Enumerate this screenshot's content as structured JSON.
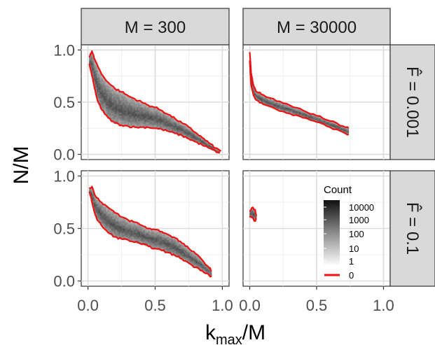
{
  "chart_data": {
    "type": "heatmap",
    "title": "",
    "xlabel": {
      "main": "k",
      "sub": "max",
      "tail": "/M"
    },
    "ylabel": "N/M",
    "col_strips": [
      "M = 300",
      "M = 30000"
    ],
    "row_strips": [
      "F̂ = 0.001",
      "F̂ = 0.1"
    ],
    "x_ticks": [
      0.0,
      0.5,
      1.0
    ],
    "x_tick_labels": [
      "0.0",
      "0.5",
      "1.0"
    ],
    "y_ticks": [
      0.0,
      0.5,
      1.0
    ],
    "y_tick_labels": [
      "0.0",
      "0.5",
      "1.0"
    ],
    "xlim": [
      -0.05,
      1.05
    ],
    "ylim": [
      -0.05,
      1.05
    ],
    "grid": true,
    "legend_position": "inside bottom-right panel",
    "legend": {
      "title": "Count",
      "colorbar_labels": [
        "10000",
        "1000",
        "100",
        "10",
        "1"
      ],
      "line_label": "0",
      "line_color": "#ee1111"
    },
    "series_color": "#ee1111",
    "panels": [
      {
        "col": 0,
        "row": 0,
        "upper": [
          [
            0.01,
            0.93
          ],
          [
            0.03,
            0.99
          ],
          [
            0.05,
            0.91
          ],
          [
            0.1,
            0.77
          ],
          [
            0.15,
            0.69
          ],
          [
            0.2,
            0.63
          ],
          [
            0.25,
            0.6
          ],
          [
            0.3,
            0.56
          ],
          [
            0.35,
            0.53
          ],
          [
            0.4,
            0.5
          ],
          [
            0.45,
            0.47
          ],
          [
            0.5,
            0.45
          ],
          [
            0.55,
            0.42
          ],
          [
            0.6,
            0.38
          ],
          [
            0.65,
            0.34
          ],
          [
            0.7,
            0.3
          ],
          [
            0.75,
            0.26
          ],
          [
            0.8,
            0.21
          ],
          [
            0.85,
            0.16
          ],
          [
            0.9,
            0.11
          ],
          [
            0.95,
            0.06
          ],
          [
            0.99,
            0.03
          ]
        ],
        "lower": [
          [
            0.01,
            0.87
          ],
          [
            0.03,
            0.75
          ],
          [
            0.05,
            0.63
          ],
          [
            0.07,
            0.52
          ],
          [
            0.1,
            0.43
          ],
          [
            0.15,
            0.35
          ],
          [
            0.2,
            0.3
          ],
          [
            0.25,
            0.28
          ],
          [
            0.3,
            0.27
          ],
          [
            0.35,
            0.26
          ],
          [
            0.4,
            0.26
          ],
          [
            0.45,
            0.26
          ],
          [
            0.5,
            0.25
          ],
          [
            0.55,
            0.24
          ],
          [
            0.6,
            0.22
          ],
          [
            0.65,
            0.2
          ],
          [
            0.7,
            0.18
          ],
          [
            0.75,
            0.15
          ],
          [
            0.8,
            0.12
          ],
          [
            0.85,
            0.09
          ],
          [
            0.9,
            0.06
          ],
          [
            0.95,
            0.03
          ],
          [
            0.98,
            0.01
          ]
        ]
      },
      {
        "col": 1,
        "row": 0,
        "upper": [
          [
            0.0,
            0.98
          ],
          [
            0.01,
            0.78
          ],
          [
            0.03,
            0.65
          ],
          [
            0.05,
            0.6
          ],
          [
            0.1,
            0.57
          ],
          [
            0.2,
            0.51
          ],
          [
            0.3,
            0.47
          ],
          [
            0.4,
            0.42
          ],
          [
            0.5,
            0.37
          ],
          [
            0.6,
            0.32
          ],
          [
            0.7,
            0.27
          ],
          [
            0.74,
            0.25
          ]
        ],
        "lower": [
          [
            0.0,
            0.9
          ],
          [
            0.01,
            0.66
          ],
          [
            0.03,
            0.56
          ],
          [
            0.05,
            0.52
          ],
          [
            0.1,
            0.48
          ],
          [
            0.2,
            0.43
          ],
          [
            0.3,
            0.39
          ],
          [
            0.4,
            0.35
          ],
          [
            0.5,
            0.31
          ],
          [
            0.6,
            0.26
          ],
          [
            0.7,
            0.21
          ],
          [
            0.74,
            0.19
          ]
        ]
      },
      {
        "col": 0,
        "row": 1,
        "upper": [
          [
            0.01,
            0.88
          ],
          [
            0.03,
            0.9
          ],
          [
            0.05,
            0.82
          ],
          [
            0.1,
            0.75
          ],
          [
            0.15,
            0.7
          ],
          [
            0.2,
            0.65
          ],
          [
            0.25,
            0.61
          ],
          [
            0.3,
            0.58
          ],
          [
            0.35,
            0.56
          ],
          [
            0.4,
            0.53
          ],
          [
            0.45,
            0.5
          ],
          [
            0.5,
            0.49
          ],
          [
            0.55,
            0.47
          ],
          [
            0.6,
            0.44
          ],
          [
            0.65,
            0.41
          ],
          [
            0.7,
            0.36
          ],
          [
            0.75,
            0.31
          ],
          [
            0.8,
            0.26
          ],
          [
            0.85,
            0.2
          ],
          [
            0.9,
            0.13
          ],
          [
            0.92,
            0.1
          ]
        ],
        "lower": [
          [
            0.01,
            0.85
          ],
          [
            0.03,
            0.75
          ],
          [
            0.05,
            0.65
          ],
          [
            0.07,
            0.58
          ],
          [
            0.1,
            0.53
          ],
          [
            0.15,
            0.46
          ],
          [
            0.2,
            0.42
          ],
          [
            0.25,
            0.4
          ],
          [
            0.3,
            0.39
          ],
          [
            0.35,
            0.37
          ],
          [
            0.4,
            0.35
          ],
          [
            0.45,
            0.33
          ],
          [
            0.5,
            0.31
          ],
          [
            0.55,
            0.29
          ],
          [
            0.6,
            0.27
          ],
          [
            0.65,
            0.24
          ],
          [
            0.7,
            0.21
          ],
          [
            0.75,
            0.17
          ],
          [
            0.8,
            0.13
          ],
          [
            0.85,
            0.1
          ],
          [
            0.9,
            0.06
          ],
          [
            0.92,
            0.04
          ]
        ]
      },
      {
        "col": 1,
        "row": 1,
        "upper": [
          [
            0.0,
            0.66
          ],
          [
            0.02,
            0.7
          ],
          [
            0.04,
            0.68
          ],
          [
            0.05,
            0.62
          ]
        ],
        "lower": [
          [
            0.0,
            0.62
          ],
          [
            0.02,
            0.6
          ],
          [
            0.04,
            0.57
          ],
          [
            0.05,
            0.6
          ]
        ]
      }
    ]
  }
}
